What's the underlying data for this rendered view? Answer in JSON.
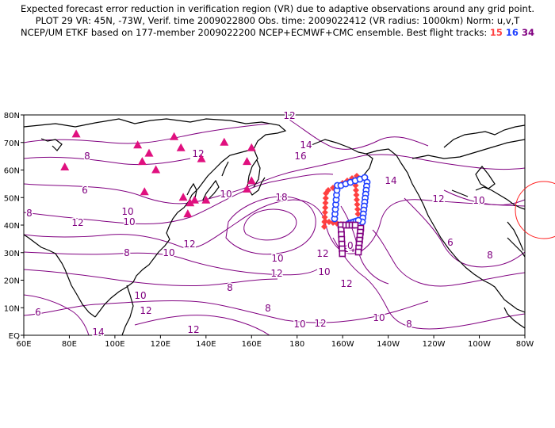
{
  "header": {
    "line1": "Expected forecast error reduction in verification region (VR) due to adaptive observations around any grid point.",
    "line2": "PLOT 29 VR: 45N, -73W, Verif. time 2009022800 Obs. time: 2009022412 (VR radius: 1000km) Norm: u,v,T",
    "line3_prefix": "NCEP/UM ETKF based on 177-member 2009022200 NCEP+ECMWF+CMC ensemble. Best flight tracks:",
    "track_ids": [
      {
        "id": "15",
        "color": "#ff4040"
      },
      {
        "id": "16",
        "color": "#2040ff"
      },
      {
        "id": "34",
        "color": "#800080"
      }
    ]
  },
  "axes": {
    "x_ticks": [
      "60E",
      "80E",
      "100E",
      "120E",
      "140E",
      "160E",
      "180",
      "160W",
      "140W",
      "120W",
      "100W",
      "80W"
    ],
    "y_ticks": [
      "EQ",
      "10N",
      "20N",
      "30N",
      "40N",
      "50N",
      "60N",
      "70N",
      "80N"
    ],
    "x_range_deg_east": [
      60,
      280
    ],
    "y_range_deg_north": [
      0,
      80
    ]
  },
  "contour_labels": [
    "12",
    "14",
    "16",
    "18",
    "14",
    "12",
    "10",
    "8",
    "6",
    "8",
    "10",
    "12",
    "10",
    "12",
    "10",
    "8",
    "6",
    "10",
    "12",
    "14",
    "12",
    "10",
    "12",
    "10",
    "8",
    "8",
    "10",
    "12",
    "14",
    "12",
    "10",
    "8",
    "6",
    "8",
    "10",
    "12",
    "10",
    "12"
  ],
  "dropsonde_sites": {
    "symbol": "triangle",
    "color": "#e0107f",
    "points": [
      [
        83,
        73
      ],
      [
        78,
        61
      ],
      [
        110,
        69
      ],
      [
        112,
        63
      ],
      [
        115,
        66
      ],
      [
        118,
        60
      ],
      [
        113,
        52
      ],
      [
        126,
        72
      ],
      [
        129,
        68
      ],
      [
        138,
        64
      ],
      [
        148,
        70
      ],
      [
        130,
        50
      ],
      [
        133,
        48
      ],
      [
        135,
        49
      ],
      [
        132,
        44
      ],
      [
        140,
        49
      ],
      [
        160,
        68
      ],
      [
        158,
        63
      ],
      [
        160,
        56
      ],
      [
        158,
        53
      ]
    ]
  },
  "flight_tracks": [
    {
      "id": "15",
      "marker": "filled-diamond",
      "color": "#ff4040"
    },
    {
      "id": "16",
      "marker": "open-circle",
      "color": "#2040ff"
    },
    {
      "id": "34",
      "marker": "open-square",
      "color": "#800080"
    }
  ],
  "verification_region": {
    "center": "45N, -73W",
    "radius": "1000km",
    "color": "#ff2020"
  },
  "colors": {
    "contour": "#800080",
    "coast": "#000000"
  }
}
